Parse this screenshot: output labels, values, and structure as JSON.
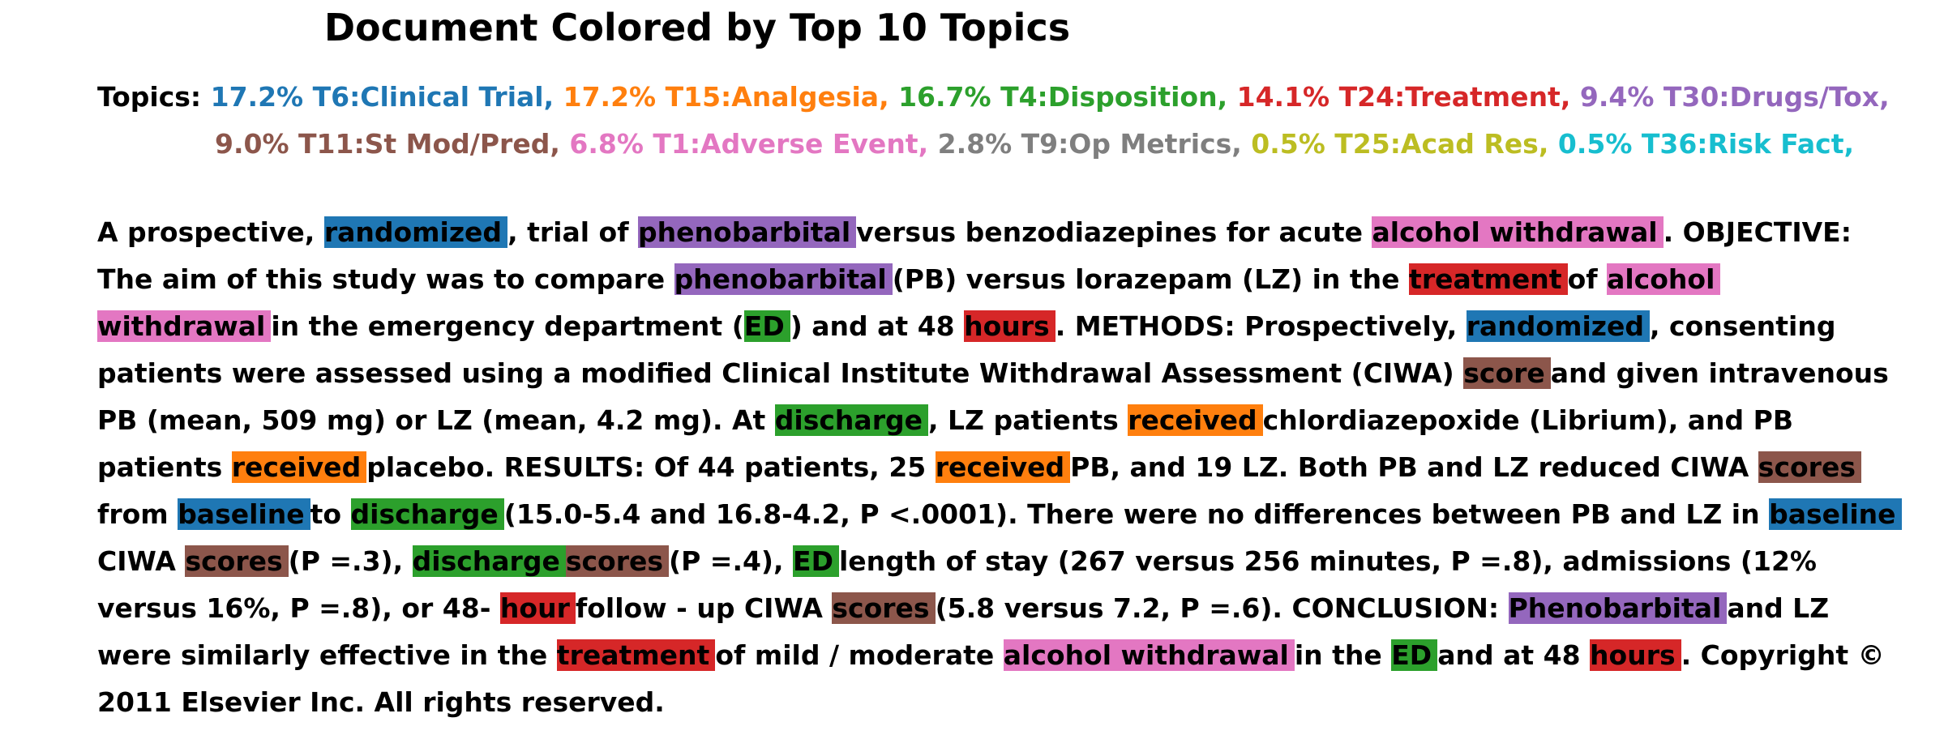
{
  "title": "Document Colored by Top 10 Topics",
  "legend_label": "Topics:",
  "topics": [
    {
      "pct": "17.2%",
      "name": "T6:Clinical Trial",
      "color": "#1f77b4"
    },
    {
      "pct": "17.2%",
      "name": "T15:Analgesia",
      "color": "#ff7f0e"
    },
    {
      "pct": "16.7%",
      "name": "T4:Disposition",
      "color": "#2ca02c"
    },
    {
      "pct": "14.1%",
      "name": "T24:Treatment",
      "color": "#d62728"
    },
    {
      "pct": "9.4%",
      "name": "T30:Drugs/Tox",
      "color": "#9467bd"
    },
    {
      "pct": "9.0%",
      "name": "T11:St Mod/Pred",
      "color": "#8c564b"
    },
    {
      "pct": "6.8%",
      "name": "T1:Adverse Event",
      "color": "#e377c2"
    },
    {
      "pct": "2.8%",
      "name": "T9:Op Metrics",
      "color": "#7f7f7f"
    },
    {
      "pct": "0.5%",
      "name": "T25:Acad Res",
      "color": "#bcbd22"
    },
    {
      "pct": "0.5%",
      "name": "T36:Risk Fact",
      "color": "#17becf"
    }
  ],
  "legend_line_breaks": [
    5
  ],
  "lines": [
    [
      [
        "A prospective, ",
        null
      ],
      [
        "randomized",
        0
      ],
      [
        ", trial of ",
        null
      ],
      [
        "phenobarbital",
        4
      ],
      [
        "versus benzodiazepines for acute ",
        null
      ],
      [
        "alcohol withdrawal",
        6
      ],
      [
        ". OBJECTIVE:",
        null
      ]
    ],
    [
      [
        "The aim of this study was to compare ",
        null
      ],
      [
        "phenobarbital",
        4
      ],
      [
        "(PB) versus lorazepam (LZ) in the ",
        null
      ],
      [
        "treatment",
        3
      ],
      [
        "of ",
        null
      ],
      [
        "alcohol",
        6
      ]
    ],
    [
      [
        "withdrawal",
        6
      ],
      [
        "in the emergency department (",
        null
      ],
      [
        "ED",
        2
      ],
      [
        ") and at 48 ",
        null
      ],
      [
        "hours",
        3
      ],
      [
        ". METHODS: Prospectively, ",
        null
      ],
      [
        "randomized",
        0
      ],
      [
        ", consenting",
        null
      ]
    ],
    [
      [
        "patients were assessed using a modified Clinical Institute Withdrawal Assessment (CIWA) ",
        null
      ],
      [
        "score",
        5
      ],
      [
        "and given intravenous",
        null
      ]
    ],
    [
      [
        "PB (mean, 509 mg) or LZ (mean, 4.2 mg). At ",
        null
      ],
      [
        "discharge",
        2
      ],
      [
        ", LZ patients ",
        null
      ],
      [
        "received",
        1
      ],
      [
        "chlordiazepoxide (Librium), and PB",
        null
      ]
    ],
    [
      [
        "patients ",
        null
      ],
      [
        "received",
        1
      ],
      [
        "placebo. RESULTS: Of 44 patients, 25 ",
        null
      ],
      [
        "received",
        1
      ],
      [
        "PB, and 19 LZ. Both PB and LZ reduced CIWA ",
        null
      ],
      [
        "scores",
        5
      ]
    ],
    [
      [
        "from ",
        null
      ],
      [
        "baseline",
        0
      ],
      [
        "to ",
        null
      ],
      [
        "discharge",
        2
      ],
      [
        "(15.0-5.4 and 16.8-4.2, P <.0001). There were no differences between PB and LZ in ",
        null
      ],
      [
        "baseline",
        0
      ]
    ],
    [
      [
        "CIWA ",
        null
      ],
      [
        "scores",
        5
      ],
      [
        "(P =.3), ",
        null
      ],
      [
        "discharge",
        2
      ],
      [
        "scores",
        5
      ],
      [
        "(P =.4), ",
        null
      ],
      [
        "ED",
        2
      ],
      [
        "length of stay (267 versus 256 minutes, P =.8), admissions (12%",
        null
      ]
    ],
    [
      [
        "versus 16%, P =.8), or 48- ",
        null
      ],
      [
        "hour",
        3
      ],
      [
        "follow - up CIWA ",
        null
      ],
      [
        "scores",
        5
      ],
      [
        "(5.8 versus 7.2, P =.6). CONCLUSION: ",
        null
      ],
      [
        "Phenobarbital",
        4
      ],
      [
        "and LZ",
        null
      ]
    ],
    [
      [
        "were similarly effective in the ",
        null
      ],
      [
        "treatment",
        3
      ],
      [
        "of mild / moderate ",
        null
      ],
      [
        "alcohol withdrawal",
        6
      ],
      [
        "in the ",
        null
      ],
      [
        "ED",
        2
      ],
      [
        "and at 48 ",
        null
      ],
      [
        "hours",
        3
      ],
      [
        ". Copyright ©",
        null
      ]
    ],
    [
      [
        "2011 Elsevier Inc. All rights reserved.",
        null
      ]
    ]
  ]
}
